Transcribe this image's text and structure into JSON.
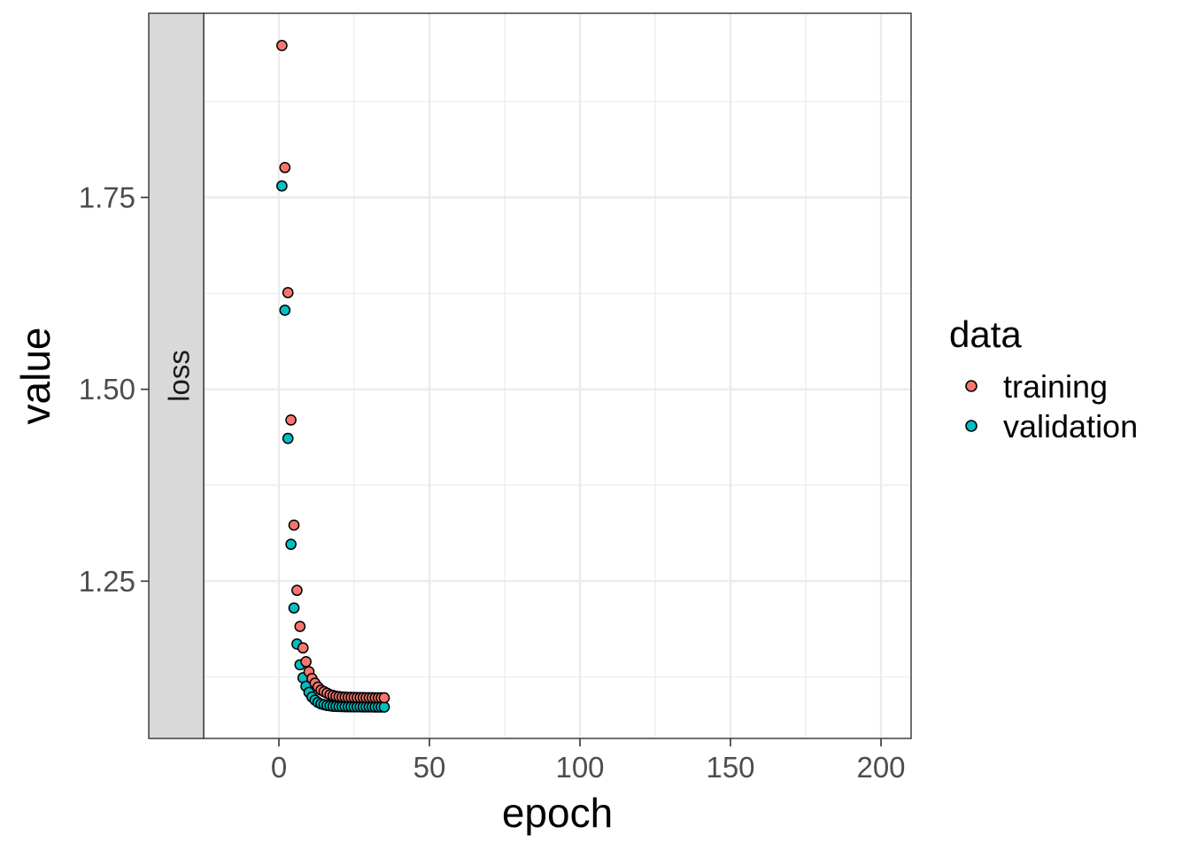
{
  "chart_data": {
    "type": "scatter",
    "facet_label": "loss",
    "xlabel": "epoch",
    "ylabel": "value",
    "xlim": [
      -25,
      210
    ],
    "ylim": [
      1.045,
      1.99
    ],
    "x_ticks": [
      0,
      50,
      100,
      150,
      200
    ],
    "x_tick_labels": [
      "0",
      "50",
      "100",
      "150",
      "200"
    ],
    "x_minor_ticks": [
      25,
      75,
      125,
      175
    ],
    "y_ticks": [
      1.25,
      1.5,
      1.75
    ],
    "y_tick_labels": [
      "1.25",
      "1.50",
      "1.75"
    ],
    "y_minor_ticks": [
      1.125,
      1.375,
      1.625,
      1.875
    ],
    "grid": true,
    "legend": {
      "title": "data",
      "position": "right"
    },
    "series": [
      {
        "name": "training",
        "color": "#F8766D",
        "x": [
          1,
          2,
          3,
          4,
          5,
          6,
          7,
          8,
          9,
          10,
          11,
          12,
          13,
          14,
          15,
          16,
          17,
          18,
          19,
          20,
          21,
          22,
          23,
          24,
          25,
          26,
          27,
          28,
          29,
          30,
          31,
          32,
          33,
          34,
          35
        ],
        "y": [
          1.948,
          1.789,
          1.626,
          1.46,
          1.323,
          1.238,
          1.191,
          1.163,
          1.145,
          1.132,
          1.123,
          1.117,
          1.112,
          1.108,
          1.106,
          1.104,
          1.102,
          1.101,
          1.1,
          1.0995,
          1.099,
          1.0988,
          1.0986,
          1.0985,
          1.0984,
          1.0983,
          1.0982,
          1.0982,
          1.0981,
          1.0981,
          1.0981,
          1.098,
          1.098,
          1.098,
          1.098
        ]
      },
      {
        "name": "validation",
        "color": "#00BFC4",
        "x": [
          1,
          2,
          3,
          4,
          5,
          6,
          7,
          8,
          9,
          10,
          11,
          12,
          13,
          14,
          15,
          16,
          17,
          18,
          19,
          20,
          21,
          22,
          23,
          24,
          25,
          26,
          27,
          28,
          29,
          30,
          31,
          32,
          33,
          34,
          35
        ],
        "y": [
          1.765,
          1.603,
          1.436,
          1.298,
          1.215,
          1.168,
          1.141,
          1.124,
          1.113,
          1.105,
          1.099,
          1.095,
          1.092,
          1.09,
          1.089,
          1.088,
          1.0875,
          1.087,
          1.0868,
          1.0866,
          1.0865,
          1.0864,
          1.0863,
          1.0863,
          1.0862,
          1.0862,
          1.0862,
          1.0861,
          1.0861,
          1.0861,
          1.0861,
          1.086,
          1.086,
          1.086,
          1.086
        ]
      }
    ]
  }
}
